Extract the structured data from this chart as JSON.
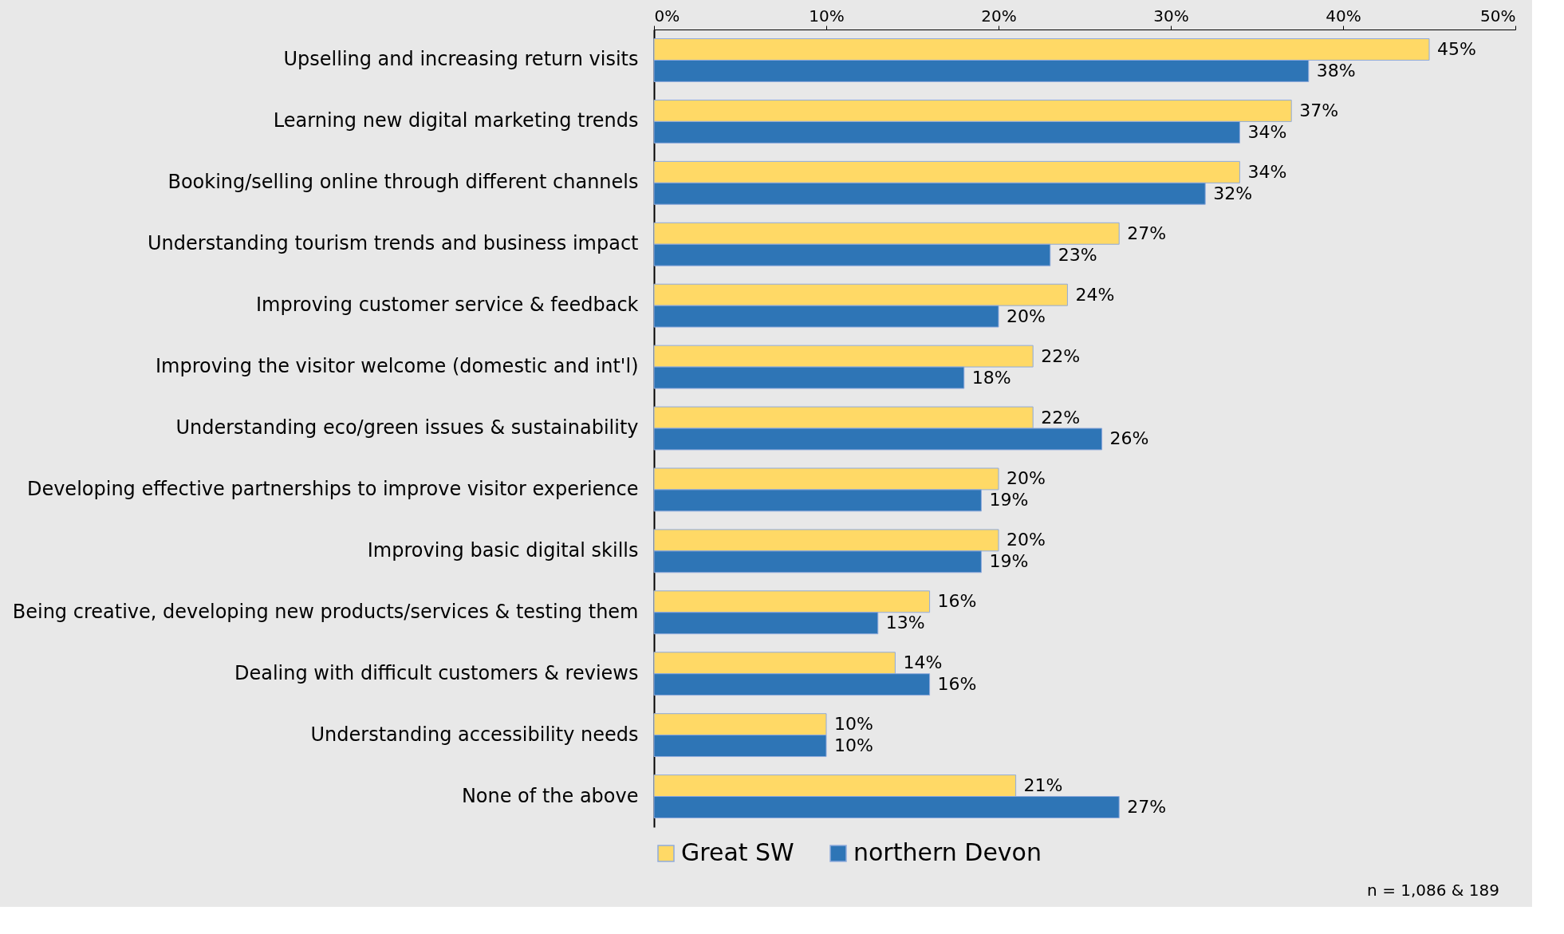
{
  "chart_data": {
    "type": "bar",
    "orientation": "horizontal",
    "categories": [
      "Upselling and increasing return visits",
      "Learning new digital marketing trends",
      "Booking/selling online through different channels",
      "Understanding tourism trends and business impact",
      "Improving customer service & feedback",
      "Improving the visitor welcome (domestic and int'l)",
      "Understanding eco/green issues & sustainability",
      "Developing effective partnerships to improve visitor experience",
      "Improving basic digital skills",
      "Being creative, developing new products/services & testing them",
      "Dealing with difficult customers & reviews",
      "Understanding accessibility needs",
      "None of the above"
    ],
    "series": [
      {
        "name": "Great SW",
        "color": "#ffd966",
        "values": [
          45,
          37,
          34,
          27,
          24,
          22,
          22,
          20,
          20,
          16,
          14,
          10,
          21
        ],
        "value_labels": [
          "45%",
          "37%",
          "34%",
          "27%",
          "24%",
          "22%",
          "22%",
          "20%",
          "20%",
          "16%",
          "14%",
          "10%",
          "21%"
        ]
      },
      {
        "name": "northern Devon",
        "color": "#2e75b6",
        "values": [
          38,
          34,
          32,
          23,
          20,
          18,
          26,
          19,
          19,
          13,
          16,
          10,
          27
        ],
        "value_labels": [
          "38%",
          "34%",
          "32%",
          "23%",
          "20%",
          "18%",
          "26%",
          "19%",
          "19%",
          "13%",
          "16%",
          "10%",
          "27%"
        ]
      }
    ],
    "xlim": [
      0,
      50
    ],
    "xticks": [
      {
        "value": 0,
        "label": "0%"
      },
      {
        "value": 10,
        "label": "10%"
      },
      {
        "value": 20,
        "label": "20%"
      },
      {
        "value": 30,
        "label": "30%"
      },
      {
        "value": 40,
        "label": "40%"
      },
      {
        "value": 50,
        "label": "50%"
      }
    ],
    "grid": false,
    "legend": "bottom",
    "annotations": [
      "n = 1,086 & 189"
    ]
  }
}
